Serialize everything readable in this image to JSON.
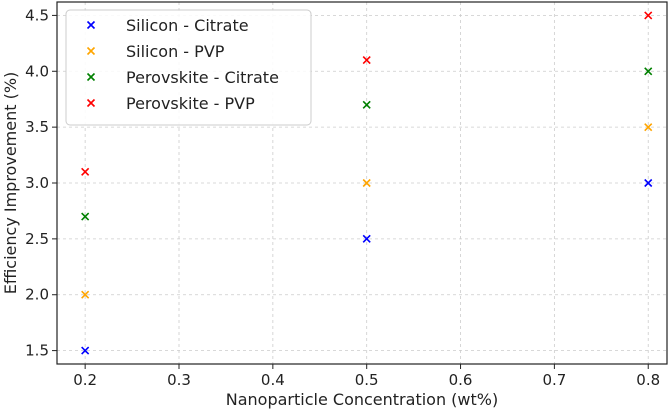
{
  "chart_data": {
    "type": "scatter",
    "title": "",
    "xlabel": "Nanoparticle Concentration (wt%)",
    "ylabel": "Efficiency Improvement (%)",
    "xlim": [
      0.17,
      0.82
    ],
    "ylim": [
      1.38,
      4.62
    ],
    "xticks": [
      "0.2",
      "0.3",
      "0.4",
      "0.5",
      "0.6",
      "0.7",
      "0.8"
    ],
    "yticks": [
      "1.5",
      "2.0",
      "2.5",
      "3.0",
      "3.5",
      "4.0",
      "4.5"
    ],
    "grid": true,
    "legend_position": "top-left",
    "marker": "x",
    "series": [
      {
        "name": "Silicon - Citrate",
        "color": "#0000ff",
        "x": [
          0.2,
          0.5,
          0.8
        ],
        "y": [
          1.5,
          2.5,
          3.0
        ]
      },
      {
        "name": "Silicon - PVP",
        "color": "#ffa500",
        "x": [
          0.2,
          0.5,
          0.8
        ],
        "y": [
          2.0,
          3.0,
          3.5
        ]
      },
      {
        "name": "Perovskite - Citrate",
        "color": "#008000",
        "x": [
          0.2,
          0.5,
          0.8
        ],
        "y": [
          2.7,
          3.7,
          4.0
        ]
      },
      {
        "name": "Perovskite - PVP",
        "color": "#ff0000",
        "x": [
          0.2,
          0.5,
          0.8
        ],
        "y": [
          3.1,
          4.1,
          4.5
        ]
      }
    ]
  }
}
